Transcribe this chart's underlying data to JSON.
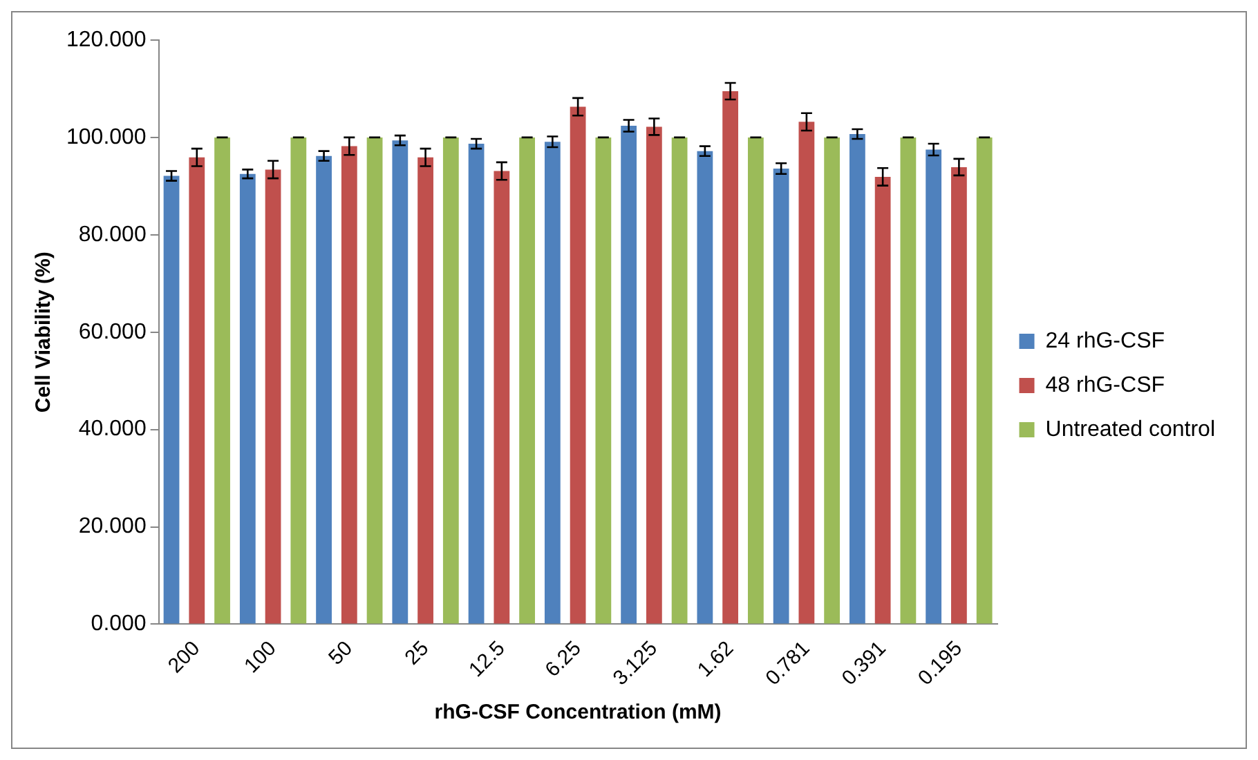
{
  "chart_data": {
    "type": "bar",
    "xlabel": "rhG-CSF Concentration (mM)",
    "ylabel": "Cell Viability (%)",
    "categories": [
      "200",
      "100",
      "50",
      "25",
      "12.5",
      "6.25",
      "3.125",
      "1.62",
      "0.781",
      "0.391",
      "0.195"
    ],
    "series": [
      {
        "name": "24 rhG-CSF",
        "color": "#4f81bd",
        "values": [
          92.1,
          92.5,
          96.2,
          99.4,
          98.7,
          99.1,
          102.4,
          97.2,
          93.6,
          100.7,
          97.5
        ],
        "errors": [
          1,
          0.9,
          1,
          1,
          1,
          1.1,
          1.2,
          1,
          1.1,
          1,
          1.2
        ]
      },
      {
        "name": "48 rhG-CSF",
        "color": "#c0504d",
        "values": [
          95.9,
          93.4,
          98.2,
          95.9,
          93.1,
          106.3,
          102.2,
          109.5,
          103.2,
          91.9,
          93.9
        ],
        "errors": [
          1.8,
          1.8,
          1.8,
          1.8,
          1.8,
          1.8,
          1.7,
          1.7,
          1.8,
          1.8,
          1.7
        ]
      },
      {
        "name": "Untreated control",
        "color": "#9bbb59",
        "values": [
          100,
          100,
          100,
          100,
          100,
          100,
          100,
          100,
          100,
          100,
          100
        ],
        "errors": [
          0,
          0,
          0,
          0,
          0,
          0,
          0,
          0,
          0,
          0,
          0
        ]
      }
    ],
    "ylim": [
      0,
      120
    ],
    "yticks": [
      {
        "value": 0,
        "label": "0.000"
      },
      {
        "value": 20,
        "label": "20.000"
      },
      {
        "value": 40,
        "label": "40.000"
      },
      {
        "value": 60,
        "label": "60.000"
      },
      {
        "value": 80,
        "label": "80.000"
      },
      {
        "value": 100,
        "label": "100.000"
      },
      {
        "value": 120,
        "label": "120.000"
      }
    ],
    "grid": false,
    "legend": "right"
  }
}
